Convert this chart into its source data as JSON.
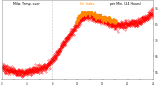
{
  "bg_color": "#ffffff",
  "plot_bg": "#ffffff",
  "border_color": "#999999",
  "temp_color": "#ff0000",
  "hi_color": "#ff8800",
  "vline_x": 480,
  "ylim": [
    50,
    100
  ],
  "xlim": [
    0,
    1440
  ],
  "yticks": [
    55,
    65,
    75,
    85,
    95
  ],
  "xtick_positions": [
    0,
    120,
    240,
    360,
    480,
    600,
    720,
    840,
    960,
    1080,
    1200,
    1320,
    1440
  ],
  "ytick_labels": [
    "55",
    "65",
    "75",
    "85",
    "95"
  ],
  "title": "Milw. Temp. over Ht. Index per Min. (24 Hours)",
  "title_part1": "Milw. Temp. over ",
  "title_part2": "Ht. Index",
  "title_part3": " per Min. (24 Hours)"
}
